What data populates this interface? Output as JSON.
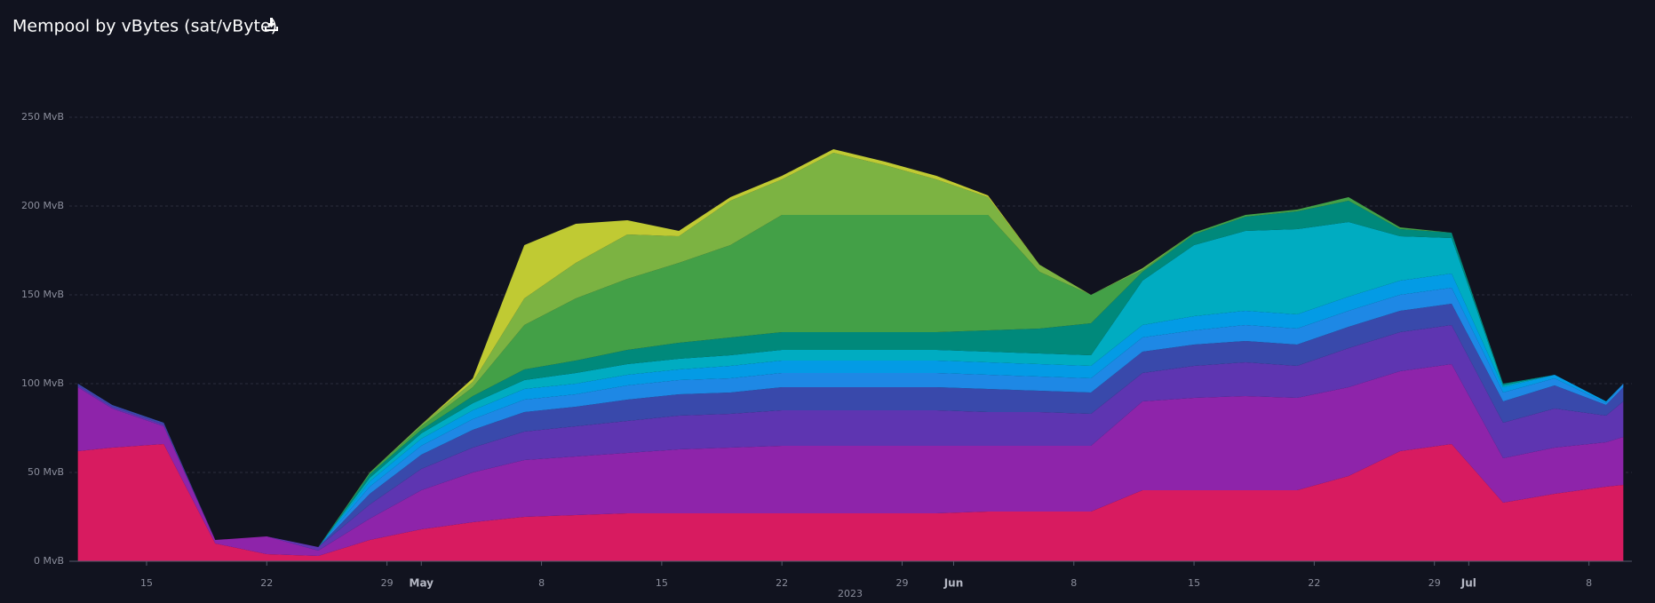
{
  "chart_data": {
    "type": "stacked-area",
    "title": "Mempool by vBytes (sat/vByte)",
    "x_label": "2023",
    "x": [
      "2023-04-11",
      "2023-04-13",
      "2023-04-16",
      "2023-04-19",
      "2023-04-22",
      "2023-04-25",
      "2023-04-28",
      "2023-05-01",
      "2023-05-04",
      "2023-05-07",
      "2023-05-10",
      "2023-05-13",
      "2023-05-16",
      "2023-05-19",
      "2023-05-22",
      "2023-05-25",
      "2023-05-28",
      "2023-05-31",
      "2023-06-03",
      "2023-06-06",
      "2023-06-09",
      "2023-06-12",
      "2023-06-15",
      "2023-06-18",
      "2023-06-21",
      "2023-06-24",
      "2023-06-27",
      "2023-06-30",
      "2023-07-03",
      "2023-07-06",
      "2023-07-09",
      "2023-07-10"
    ],
    "xlim": [
      "2023-04-10T12:00:00Z",
      "2023-07-10T12:00:00Z"
    ],
    "xticks": [
      {
        "value": "2023-04-15",
        "label": "15"
      },
      {
        "value": "2023-04-22",
        "label": "22"
      },
      {
        "value": "2023-04-29",
        "label": "29"
      },
      {
        "value": "2023-05-01",
        "label": "May"
      },
      {
        "value": "2023-05-08",
        "label": "8"
      },
      {
        "value": "2023-05-15",
        "label": "15"
      },
      {
        "value": "2023-05-22",
        "label": "22"
      },
      {
        "value": "2023-05-29",
        "label": "29"
      },
      {
        "value": "2023-06-01",
        "label": "Jun"
      },
      {
        "value": "2023-06-08",
        "label": "8"
      },
      {
        "value": "2023-06-15",
        "label": "15"
      },
      {
        "value": "2023-06-22",
        "label": "22"
      },
      {
        "value": "2023-06-29",
        "label": "29"
      },
      {
        "value": "2023-07-01",
        "label": "Jul"
      },
      {
        "value": "2023-07-08",
        "label": "8"
      }
    ],
    "ylim": [
      0,
      250
    ],
    "yticks": [
      {
        "value": 0,
        "label": "0 MvB"
      },
      {
        "value": 50,
        "label": "50 MvB"
      },
      {
        "value": 100,
        "label": "100 MvB"
      },
      {
        "value": 150,
        "label": "150 MvB"
      },
      {
        "value": 200,
        "label": "200 MvB"
      },
      {
        "value": 250,
        "label": "250 MvB"
      }
    ],
    "grid": true,
    "series": [
      {
        "color": "#d81b60",
        "values": [
          62,
          64,
          66,
          10,
          4,
          3,
          12,
          18,
          22,
          25,
          26,
          27,
          27,
          27,
          27,
          27,
          27,
          27,
          28,
          28,
          28,
          40,
          40,
          40,
          40,
          48,
          62,
          66,
          33,
          38,
          42,
          43
        ]
      },
      {
        "color": "#8e24aa",
        "values": [
          36,
          22,
          10,
          2,
          10,
          3,
          12,
          22,
          28,
          32,
          33,
          34,
          36,
          37,
          38,
          38,
          38,
          38,
          37,
          37,
          37,
          50,
          52,
          53,
          52,
          50,
          45,
          45,
          25,
          26,
          25,
          27
        ]
      },
      {
        "color": "#5e35b1",
        "values": [
          1,
          1,
          1,
          0,
          0,
          2,
          8,
          12,
          14,
          16,
          17,
          18,
          19,
          19,
          20,
          20,
          20,
          20,
          19,
          19,
          18,
          16,
          18,
          19,
          18,
          22,
          22,
          22,
          20,
          22,
          15,
          20
        ]
      },
      {
        "color": "#3949ab",
        "values": [
          1,
          1,
          1,
          0,
          0,
          0,
          6,
          8,
          10,
          11,
          11,
          12,
          12,
          12,
          13,
          13,
          13,
          13,
          13,
          12,
          12,
          12,
          12,
          12,
          12,
          12,
          12,
          12,
          12,
          13,
          6,
          8
        ]
      },
      {
        "color": "#1e88e5",
        "values": [
          0,
          0,
          0,
          0,
          0,
          0,
          4,
          5,
          6,
          7,
          7,
          8,
          8,
          8,
          8,
          8,
          8,
          8,
          8,
          8,
          8,
          8,
          8,
          9,
          9,
          9,
          9,
          9,
          5,
          4,
          1,
          2
        ]
      },
      {
        "color": "#039be5",
        "values": [
          0,
          0,
          0,
          0,
          0,
          0,
          3,
          4,
          5,
          6,
          6,
          6,
          6,
          7,
          7,
          7,
          7,
          7,
          7,
          7,
          7,
          7,
          8,
          8,
          8,
          8,
          8,
          8,
          3,
          2,
          1,
          0
        ]
      },
      {
        "color": "#00acc1",
        "values": [
          0,
          0,
          0,
          0,
          0,
          0,
          2,
          3,
          4,
          5,
          6,
          6,
          6,
          6,
          6,
          6,
          6,
          6,
          6,
          6,
          6,
          25,
          40,
          45,
          48,
          42,
          25,
          20,
          1,
          0,
          0,
          0
        ]
      },
      {
        "color": "#00897b",
        "values": [
          0,
          0,
          0,
          0,
          0,
          0,
          2,
          2,
          4,
          6,
          7,
          8,
          9,
          10,
          10,
          10,
          10,
          10,
          12,
          14,
          18,
          5,
          6,
          8,
          10,
          12,
          4,
          3,
          1,
          0,
          0,
          0
        ]
      },
      {
        "color": "#43a047",
        "values": [
          0,
          0,
          0,
          0,
          0,
          0,
          1,
          2,
          5,
          25,
          35,
          40,
          45,
          52,
          66,
          66,
          66,
          66,
          65,
          32,
          16,
          1,
          1,
          1,
          1,
          2,
          1,
          0,
          0,
          0,
          0,
          0
        ]
      },
      {
        "color": "#7cb342",
        "values": [
          0,
          0,
          0,
          0,
          0,
          0,
          0,
          1,
          3,
          15,
          20,
          25,
          15,
          25,
          20,
          35,
          28,
          20,
          10,
          4,
          0,
          1,
          0,
          0,
          0,
          0,
          0,
          0,
          0,
          0,
          0,
          0
        ]
      },
      {
        "color": "#c0ca33",
        "values": [
          0,
          0,
          0,
          0,
          0,
          0,
          0,
          0,
          2,
          30,
          22,
          8,
          3,
          2,
          2,
          2,
          2,
          2,
          1,
          0,
          0,
          0,
          0,
          0,
          0,
          0,
          0,
          0,
          0,
          0,
          0,
          0
        ]
      }
    ]
  }
}
